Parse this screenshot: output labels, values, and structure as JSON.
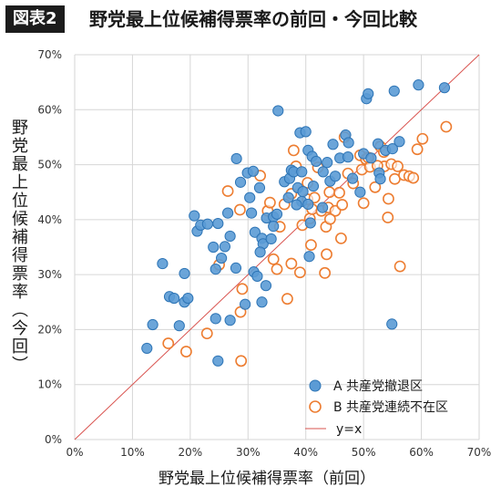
{
  "header": {
    "badge": "図表2",
    "title": "野党最上位候補得票率の前回・今回比較"
  },
  "chart_data": {
    "type": "scatter",
    "xlabel": "野党最上位候補得票率（前回）",
    "ylabel": "野党最上位候補得票率（今回）",
    "xlim": [
      0,
      70
    ],
    "ylim": [
      0,
      70
    ],
    "x_ticks": [
      "0%",
      "10%",
      "20%",
      "30%",
      "40%",
      "50%",
      "60%",
      "70%"
    ],
    "y_ticks": [
      "0%",
      "10%",
      "20%",
      "30%",
      "40%",
      "50%",
      "60%",
      "70%"
    ],
    "grid": true,
    "legend_position": "bottom-right",
    "colors": {
      "A": "#5b9bd5",
      "A_edge": "#2e75b6",
      "B": "#ed7d31",
      "diag": "#d9534f"
    },
    "series": [
      {
        "name": "A 共産党撤退区",
        "marker": "filled-circle",
        "points": [
          [
            12.5,
            16.6
          ],
          [
            13.5,
            20.9
          ],
          [
            15.2,
            32.0
          ],
          [
            16.4,
            26.0
          ],
          [
            17.2,
            25.7
          ],
          [
            18.1,
            20.7
          ],
          [
            19.0,
            25.0
          ],
          [
            19.6,
            25.7
          ],
          [
            19.0,
            30.2
          ],
          [
            21.2,
            37.9
          ],
          [
            21.8,
            39.0
          ],
          [
            20.7,
            40.7
          ],
          [
            23.0,
            39.2
          ],
          [
            24.8,
            39.3
          ],
          [
            24.0,
            35.0
          ],
          [
            26.0,
            35.1
          ],
          [
            25.4,
            33.0
          ],
          [
            24.4,
            31.0
          ],
          [
            24.4,
            22.0
          ],
          [
            24.8,
            14.3
          ],
          [
            26.9,
            21.7
          ],
          [
            26.9,
            37.0
          ],
          [
            26.5,
            41.2
          ],
          [
            28.0,
            51.1
          ],
          [
            28.7,
            46.8
          ],
          [
            29.9,
            48.5
          ],
          [
            30.9,
            48.8
          ],
          [
            32.0,
            45.8
          ],
          [
            30.3,
            44.0
          ],
          [
            30.6,
            41.2
          ],
          [
            31.2,
            37.7
          ],
          [
            33.2,
            40.3
          ],
          [
            34.4,
            40.5
          ],
          [
            35.0,
            41.0
          ],
          [
            34.4,
            38.8
          ],
          [
            32.4,
            36.6
          ],
          [
            32.6,
            35.6
          ],
          [
            32.1,
            34.1
          ],
          [
            31.0,
            30.5
          ],
          [
            31.6,
            29.7
          ],
          [
            33.1,
            28.0
          ],
          [
            32.4,
            25.0
          ],
          [
            29.5,
            24.6
          ],
          [
            34.0,
            36.5
          ],
          [
            35.2,
            59.8
          ],
          [
            36.3,
            46.9
          ],
          [
            37.0,
            44.0
          ],
          [
            37.2,
            47.5
          ],
          [
            37.5,
            49.0
          ],
          [
            37.9,
            48.7
          ],
          [
            38.6,
            45.8
          ],
          [
            39.3,
            48.7
          ],
          [
            39.5,
            45.1
          ],
          [
            39.3,
            43.3
          ],
          [
            38.4,
            42.7
          ],
          [
            39.0,
            55.8
          ],
          [
            40.0,
            56.0
          ],
          [
            40.4,
            52.6
          ],
          [
            41.1,
            51.5
          ],
          [
            41.8,
            50.6
          ],
          [
            40.4,
            42.8
          ],
          [
            40.8,
            39.4
          ],
          [
            41.3,
            46.1
          ],
          [
            42.9,
            42.2
          ],
          [
            43.0,
            48.7
          ],
          [
            43.7,
            50.4
          ],
          [
            44.2,
            47.0
          ],
          [
            44.7,
            53.7
          ],
          [
            45.1,
            47.9
          ],
          [
            45.9,
            51.2
          ],
          [
            46.9,
            55.4
          ],
          [
            47.3,
            51.4
          ],
          [
            47.4,
            54.0
          ],
          [
            48.1,
            47.5
          ],
          [
            49.4,
            45.0
          ],
          [
            50.0,
            52.0
          ],
          [
            50.5,
            62.0
          ],
          [
            50.8,
            62.9
          ],
          [
            51.3,
            51.2
          ],
          [
            52.5,
            53.8
          ],
          [
            52.7,
            48.5
          ],
          [
            52.9,
            47.4
          ],
          [
            53.8,
            52.6
          ],
          [
            55.0,
            52.9
          ],
          [
            55.3,
            63.4
          ],
          [
            56.2,
            54.2
          ],
          [
            59.5,
            64.5
          ],
          [
            64.0,
            64.0
          ],
          [
            54.9,
            21.0
          ],
          [
            40.6,
            33.3
          ],
          [
            27.9,
            31.2
          ]
        ]
      },
      {
        "name": "B 共産党連続不在区",
        "marker": "open-circle",
        "points": [
          [
            16.2,
            17.5
          ],
          [
            19.3,
            16.0
          ],
          [
            22.9,
            19.3
          ],
          [
            25.0,
            31.8
          ],
          [
            26.5,
            45.2
          ],
          [
            28.6,
            41.8
          ],
          [
            28.7,
            23.2
          ],
          [
            28.8,
            14.3
          ],
          [
            29.0,
            27.4
          ],
          [
            32.1,
            48.0
          ],
          [
            33.4,
            41.6
          ],
          [
            33.8,
            43.1
          ],
          [
            34.4,
            32.8
          ],
          [
            35.0,
            31.0
          ],
          [
            35.5,
            38.7
          ],
          [
            36.8,
            25.6
          ],
          [
            37.5,
            32.0
          ],
          [
            37.5,
            44.7
          ],
          [
            37.9,
            52.6
          ],
          [
            38.3,
            49.7
          ],
          [
            39.0,
            30.4
          ],
          [
            39.4,
            39.0
          ],
          [
            40.3,
            46.7
          ],
          [
            40.3,
            43.7
          ],
          [
            40.7,
            40.2
          ],
          [
            40.9,
            35.4
          ],
          [
            41.1,
            41.9
          ],
          [
            41.5,
            44.0
          ],
          [
            42.1,
            49.5
          ],
          [
            42.7,
            41.6
          ],
          [
            43.3,
            30.3
          ],
          [
            43.6,
            33.7
          ],
          [
            43.5,
            38.7
          ],
          [
            43.9,
            42.2
          ],
          [
            44.1,
            45.0
          ],
          [
            45.1,
            41.6
          ],
          [
            45.8,
            44.9
          ],
          [
            46.1,
            36.6
          ],
          [
            46.3,
            42.7
          ],
          [
            46.7,
            55.0
          ],
          [
            47.3,
            48.4
          ],
          [
            48.2,
            46.6
          ],
          [
            49.4,
            51.7
          ],
          [
            49.7,
            49.1
          ],
          [
            50.0,
            43.0
          ],
          [
            50.4,
            51.0
          ],
          [
            51.1,
            49.6
          ],
          [
            52.0,
            45.9
          ],
          [
            52.9,
            53.3
          ],
          [
            53.5,
            52.3
          ],
          [
            53.6,
            49.7
          ],
          [
            54.3,
            43.8
          ],
          [
            54.2,
            40.4
          ],
          [
            54.8,
            50.1
          ],
          [
            55.4,
            47.4
          ],
          [
            55.9,
            49.7
          ],
          [
            56.3,
            31.5
          ],
          [
            57.0,
            48.1
          ],
          [
            57.9,
            47.9
          ],
          [
            58.6,
            47.6
          ],
          [
            59.3,
            52.8
          ],
          [
            60.2,
            54.7
          ],
          [
            64.3,
            56.9
          ],
          [
            50.8,
            51.3
          ],
          [
            52.4,
            49.8
          ],
          [
            44.2,
            40.1
          ],
          [
            36.3,
            42.8
          ]
        ]
      },
      {
        "name": "y=x",
        "marker": "line",
        "points": [
          [
            0,
            0
          ],
          [
            70,
            70
          ]
        ]
      }
    ],
    "legend": {
      "a_label": "A 共産党撤退区",
      "b_label": "B 共産党連続不在区",
      "line_label": "y=x"
    }
  }
}
